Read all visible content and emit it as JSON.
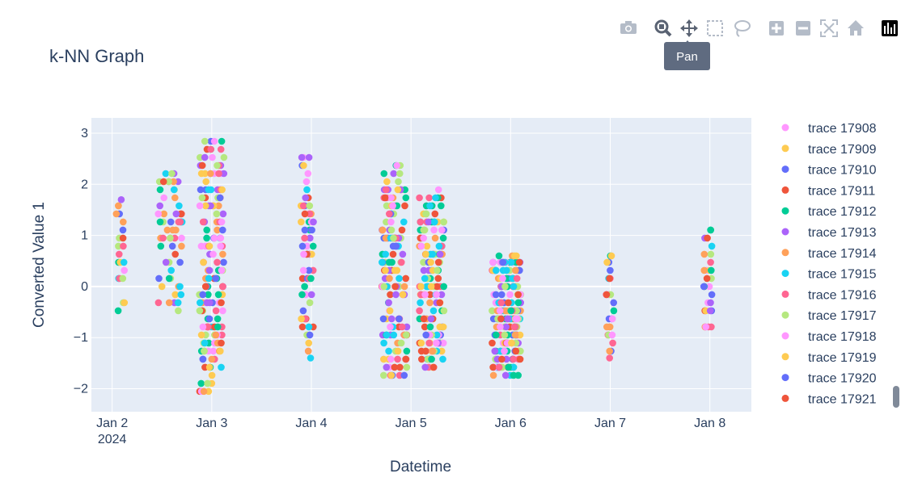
{
  "chart_data": {
    "type": "scatter",
    "title": "k-NN Graph",
    "xlabel": "Datetime",
    "ylabel": "Converted Value 1",
    "x_ticks": [
      {
        "date": "2024-01-02",
        "label": "Jan 2",
        "sublabel": "2024"
      },
      {
        "date": "2024-01-03",
        "label": "Jan 3",
        "sublabel": ""
      },
      {
        "date": "2024-01-04",
        "label": "Jan 4",
        "sublabel": ""
      },
      {
        "date": "2024-01-05",
        "label": "Jan 5",
        "sublabel": ""
      },
      {
        "date": "2024-01-06",
        "label": "Jan 6",
        "sublabel": ""
      },
      {
        "date": "2024-01-07",
        "label": "Jan 7",
        "sublabel": ""
      },
      {
        "date": "2024-01-08",
        "label": "Jan 8",
        "sublabel": ""
      }
    ],
    "xlim": [
      "2024-01-01 19:00",
      "2024-01-08 10:00"
    ],
    "y_ticks": [
      {
        "value": 3,
        "label": "3"
      },
      {
        "value": 2,
        "label": "2"
      },
      {
        "value": 1,
        "label": "1"
      },
      {
        "value": 0,
        "label": "0"
      },
      {
        "value": -1,
        "label": "−1"
      },
      {
        "value": -2,
        "label": "−2"
      }
    ],
    "ylim": [
      -2.45,
      3.3
    ],
    "grid": true,
    "legend_position": "right",
    "clusters": [
      {
        "center": "2024-01-02 02:00",
        "spread_hours": 1,
        "ymin": -0.65,
        "ymax": 1.7,
        "count": 22
      },
      {
        "center": "2024-01-02 14:00",
        "spread_hours": 3,
        "ymin": -0.5,
        "ymax": 2.25,
        "count": 60
      },
      {
        "center": "2024-01-03 00:00",
        "spread_hours": 3,
        "ymin": -2.1,
        "ymax": 2.95,
        "count": 160
      },
      {
        "center": "2024-01-03 23:00",
        "spread_hours": 1.5,
        "ymin": -1.4,
        "ymax": 2.6,
        "count": 60
      },
      {
        "center": "2024-01-04 20:00",
        "spread_hours": 3,
        "ymin": -1.75,
        "ymax": 2.4,
        "count": 150
      },
      {
        "center": "2024-01-05 05:00",
        "spread_hours": 3,
        "ymin": -1.6,
        "ymax": 1.9,
        "count": 150
      },
      {
        "center": "2024-01-05 23:00",
        "spread_hours": 3.5,
        "ymin": -1.75,
        "ymax": 0.6,
        "count": 190
      },
      {
        "center": "2024-01-07 00:00",
        "spread_hours": 1,
        "ymin": -1.4,
        "ymax": 0.6,
        "count": 28
      },
      {
        "center": "2024-01-07 23:30",
        "spread_hours": 1,
        "ymin": -0.85,
        "ymax": 1.15,
        "count": 30
      }
    ],
    "series_colors": [
      "#ff97ff",
      "#fecb52",
      "#636efa",
      "#ef553b",
      "#00cc96",
      "#ab63fa",
      "#ffa15a",
      "#19d3f3",
      "#ff6692",
      "#b6e880"
    ],
    "legend_entries": [
      {
        "name": "trace 17908",
        "color": "#ff97ff"
      },
      {
        "name": "trace 17909",
        "color": "#fecb52"
      },
      {
        "name": "trace 17910",
        "color": "#636efa"
      },
      {
        "name": "trace 17911",
        "color": "#ef553b"
      },
      {
        "name": "trace 17912",
        "color": "#00cc96"
      },
      {
        "name": "trace 17913",
        "color": "#ab63fa"
      },
      {
        "name": "trace 17914",
        "color": "#ffa15a"
      },
      {
        "name": "trace 17915",
        "color": "#19d3f3"
      },
      {
        "name": "trace 17916",
        "color": "#ff6692"
      },
      {
        "name": "trace 17917",
        "color": "#b6e880"
      },
      {
        "name": "trace 17918",
        "color": "#ff97ff"
      },
      {
        "name": "trace 17919",
        "color": "#fecb52"
      },
      {
        "name": "trace 17920",
        "color": "#636efa"
      },
      {
        "name": "trace 17921",
        "color": "#ef553b"
      }
    ]
  },
  "modebar": {
    "buttons": [
      {
        "name": "camera-icon"
      },
      {
        "name": "zoom-icon"
      },
      {
        "name": "pan-icon"
      },
      {
        "name": "box-select-icon"
      },
      {
        "name": "lasso-select-icon"
      },
      {
        "name": "zoom-in-icon"
      },
      {
        "name": "zoom-out-icon"
      },
      {
        "name": "autoscale-icon"
      },
      {
        "name": "reset-axes-icon"
      },
      {
        "name": "plotly-logo-icon"
      }
    ],
    "active": "pan-icon",
    "tooltip": "Pan"
  },
  "colors": {
    "plot_bg": "#e5ecf6",
    "grid": "#ffffff",
    "text": "#2a3f5f",
    "modebar_icon": "#b4bcc8",
    "modebar_active": "#5a6373",
    "tooltip_bg": "#5f6b80"
  }
}
